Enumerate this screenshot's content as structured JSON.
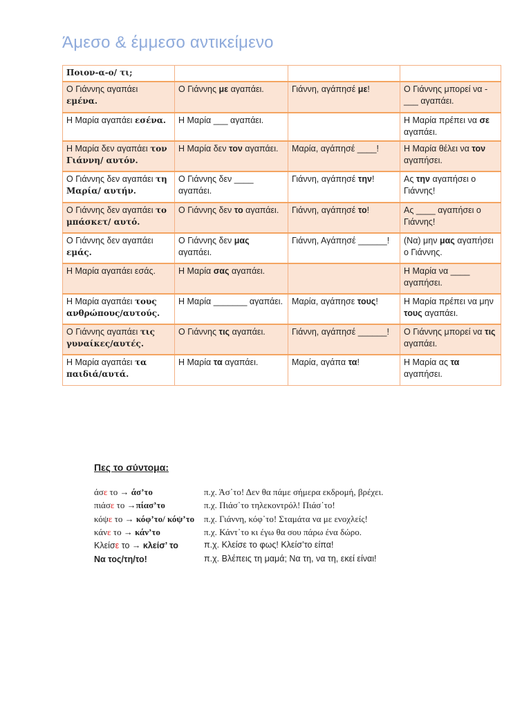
{
  "title": "Άμεσο & έμμεσο αντικείμενο",
  "table": {
    "header": [
      [
        {
          "t": "Ποιον-α-ο/ τι;",
          "b": true
        }
      ],
      [],
      [],
      []
    ],
    "rows": [
      [
        [
          {
            "t": "Ο Γιάννης αγαπάει "
          },
          {
            "t": "εμένα.",
            "b": true
          }
        ],
        [
          {
            "t": "Ο Γιάννης "
          },
          {
            "t": "με",
            "b": true
          },
          {
            "t": " αγαπάει."
          }
        ],
        [
          {
            "t": "Γιάννη, αγάπησέ "
          },
          {
            "t": "με",
            "b": true
          },
          {
            "t": "!"
          }
        ],
        [
          {
            "t": "Ο Γιάννης μπορεί να -___ αγαπάει."
          }
        ]
      ],
      [
        [
          {
            "t": "Η Μαρία αγαπάει "
          },
          {
            "t": "εσένα.",
            "b": true
          }
        ],
        [
          {
            "t": "Η Μαρία ___ αγαπάει."
          }
        ],
        [],
        [
          {
            "t": "Η Μαρία πρέπει να "
          },
          {
            "t": "σε",
            "b": true
          },
          {
            "t": " αγαπάει."
          }
        ]
      ],
      [
        [
          {
            "t": "Η Μαρία δεν αγαπάει "
          },
          {
            "t": "τον Γιάννη/ αυτόν.",
            "b": true
          }
        ],
        [
          {
            "t": "Η Μαρία δεν "
          },
          {
            "t": "τον",
            "b": true
          },
          {
            "t": " αγαπάει."
          }
        ],
        [
          {
            "t": "Μαρία, αγάπησέ ____!"
          }
        ],
        [
          {
            "t": "Η Μαρία θέλει να "
          },
          {
            "t": "τον",
            "b": true
          },
          {
            "t": " αγαπήσει."
          }
        ]
      ],
      [
        [
          {
            "t": "Ο Γιάννης δεν αγαπάει "
          },
          {
            "t": "τη Μαρία/ αυτήν.",
            "b": true
          }
        ],
        [
          {
            "t": "Ο Γιάννης δεν ____ αγαπάει."
          }
        ],
        [
          {
            "t": "Γιάννη, αγάπησέ "
          },
          {
            "t": "την",
            "b": true
          },
          {
            "t": "!"
          }
        ],
        [
          {
            "t": "Ας "
          },
          {
            "t": "την",
            "b": true
          },
          {
            "t": " αγαπήσει ο Γιάννης!"
          }
        ]
      ],
      [
        [
          {
            "t": "Ο Γιάννης δεν αγαπάει "
          },
          {
            "t": "το μπάσκετ/ αυτό.",
            "b": true
          }
        ],
        [
          {
            "t": "Ο Γιάννης δεν "
          },
          {
            "t": "το",
            "b": true
          },
          {
            "t": " αγαπάει."
          }
        ],
        [
          {
            "t": "Γιάννη, αγάπησέ "
          },
          {
            "t": "το",
            "b": true
          },
          {
            "t": "!"
          }
        ],
        [
          {
            "t": "Ας ____ αγαπήσει ο Γιάννης!"
          }
        ]
      ],
      [
        [
          {
            "t": "Ο Γιάννης δεν αγαπάει "
          },
          {
            "t": "εμάς.",
            "b": true
          }
        ],
        [
          {
            "t": "Ο Γιάννης δεν "
          },
          {
            "t": "μας",
            "b": true
          },
          {
            "t": " αγαπάει."
          }
        ],
        [
          {
            "t": "Γιάννη, Αγάπησέ ______!"
          }
        ],
        [
          {
            "t": "(Να) μην "
          },
          {
            "t": "μας",
            "b": true
          },
          {
            "t": " αγαπήσει ο Γιάννης."
          }
        ]
      ],
      [
        [
          {
            "t": "Η Μαρία αγαπάει εσάς."
          }
        ],
        [
          {
            "t": "Η Μαρία "
          },
          {
            "t": "σας",
            "b": true
          },
          {
            "t": " αγαπάει."
          }
        ],
        [],
        [
          {
            "t": "Η Μαρία να ____ αγαπήσει."
          }
        ]
      ],
      [
        [
          {
            "t": "Η Μαρία αγαπάει "
          },
          {
            "t": "τους ανθρώπους/αυτούς.",
            "b": true
          }
        ],
        [
          {
            "t": "Η Μαρία _______ αγαπάει."
          }
        ],
        [
          {
            "t": "Μαρία, αγάπησε "
          },
          {
            "t": "τους",
            "b": true
          },
          {
            "t": "!"
          }
        ],
        [
          {
            "t": "Η Μαρία πρέπει να μην "
          },
          {
            "t": "τους",
            "b": true
          },
          {
            "t": " αγαπάει."
          }
        ]
      ],
      [
        [
          {
            "t": "Ο Γιάννης αγαπάει "
          },
          {
            "t": "τις γυναίκες/αυτές.",
            "b": true
          }
        ],
        [
          {
            "t": "Ο Γιάννης "
          },
          {
            "t": "τις",
            "b": true
          },
          {
            "t": " αγαπάει."
          }
        ],
        [
          {
            "t": "Γιάννη, αγάπησέ ______!"
          }
        ],
        [
          {
            "t": "Ο Γιάννης μπορεί να "
          },
          {
            "t": "τις",
            "b": true
          },
          {
            "t": " αγαπάει."
          }
        ]
      ],
      [
        [
          {
            "t": "Η Μαρία αγαπάει "
          },
          {
            "t": "τα παιδιά/αυτά.",
            "b": true
          }
        ],
        [
          {
            "t": "Η Μαρία "
          },
          {
            "t": "τα",
            "b": true
          },
          {
            "t": " αγαπάει."
          }
        ],
        [
          {
            "t": "Μαρία, αγάπα "
          },
          {
            "t": "τα",
            "b": true
          },
          {
            "t": "!"
          }
        ],
        [
          {
            "t": "Η Μαρία ας "
          },
          {
            "t": "τα",
            "b": true
          },
          {
            "t": " αγαπήσει."
          }
        ]
      ]
    ]
  },
  "short": {
    "title": "Πες το σύντομα:",
    "highlight_color": "#e02020",
    "lines": [
      {
        "form": [
          {
            "t": "άσ"
          },
          {
            "t": "ε",
            "r": true
          },
          {
            "t": " το → "
          },
          {
            "t": "άσ’το",
            "b": true
          }
        ],
        "example": "π.χ. Άσ᾽το! Δεν θα πάμε σήμερα εκδρομή, βρέχει."
      },
      {
        "form": [
          {
            "t": "πιάσ"
          },
          {
            "t": "ε",
            "r": true
          },
          {
            "t": " το →"
          },
          {
            "t": "πίασ’το",
            "b": true
          }
        ],
        "example": "π.χ. Πιάσ᾽το τηλεκοντρόλ! Πιάσ᾽το!"
      },
      {
        "form": [
          {
            "t": "κόψ"
          },
          {
            "t": "ε",
            "r": true
          },
          {
            "t": " το → "
          },
          {
            "t": "κόφ’το/ κόψ’το",
            "b": true
          }
        ],
        "example": "π.χ. Γιάννη, κόφ᾽το! Σταμάτα να με ενοχλείς!"
      },
      {
        "form": [
          {
            "t": "κάν"
          },
          {
            "t": "ε",
            "r": true
          },
          {
            "t": " το → "
          },
          {
            "t": "κάν’το",
            "b": true
          }
        ],
        "example": "π.χ. Κάντ᾽το κι έγω θα σου πάρω ένα δώρο."
      },
      {
        "form": [
          {
            "t": "Κλείσ"
          },
          {
            "t": "ε",
            "r": true
          },
          {
            "t": " το → "
          },
          {
            "t": "κλείσ’ το",
            "b": true
          }
        ],
        "example": "π.χ. Κλείσε το φως! Κλείσ’το είπα!"
      },
      {
        "form": [
          {
            "t": "Να τος/τη/το!",
            "b": true
          }
        ],
        "example": "π.χ. Βλέπεις τη μαμά; Να τη, να τη, εκεί είναι!"
      }
    ]
  }
}
